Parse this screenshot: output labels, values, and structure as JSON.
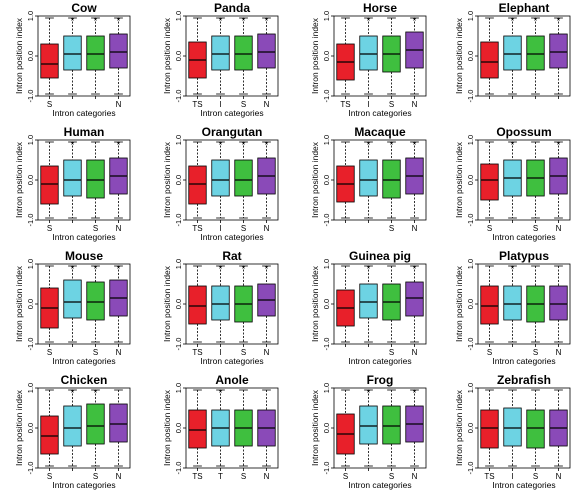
{
  "colors": [
    "#e8202a",
    "#6dd3e3",
    "#3fbf3f",
    "#8a4ab8"
  ],
  "chart_data": [
    {
      "type": "box",
      "title": "Cow",
      "xlabel": "Intron categories",
      "ylabel": "Intron position index",
      "ylim": [
        -1,
        1
      ],
      "yticks": [
        "1.0",
        "0.0",
        "-1.0"
      ],
      "categories": [
        "S",
        "",
        "",
        "N"
      ],
      "boxes": [
        {
          "whislo": -0.95,
          "q1": -0.55,
          "med": -0.2,
          "q3": 0.3,
          "whishi": 0.95
        },
        {
          "whislo": -0.95,
          "q1": -0.35,
          "med": 0.05,
          "q3": 0.5,
          "whishi": 0.95
        },
        {
          "whislo": -0.95,
          "q1": -0.35,
          "med": 0.05,
          "q3": 0.5,
          "whishi": 0.95
        },
        {
          "whislo": -0.95,
          "q1": -0.3,
          "med": 0.1,
          "q3": 0.55,
          "whishi": 0.95
        }
      ],
      "stars": [
        "",
        "*",
        "*",
        "*"
      ]
    },
    {
      "type": "box",
      "title": "Panda",
      "xlabel": "Intron categories",
      "ylabel": "Intron position index",
      "ylim": [
        -1,
        1
      ],
      "yticks": [
        "1.0",
        "0.0",
        "-1.0"
      ],
      "categories": [
        "TS",
        "I",
        "S",
        "N"
      ],
      "boxes": [
        {
          "whislo": -0.95,
          "q1": -0.55,
          "med": -0.1,
          "q3": 0.35,
          "whishi": 0.95
        },
        {
          "whislo": -0.95,
          "q1": -0.35,
          "med": 0.05,
          "q3": 0.5,
          "whishi": 0.95
        },
        {
          "whislo": -0.95,
          "q1": -0.35,
          "med": 0.05,
          "q3": 0.5,
          "whishi": 0.95
        },
        {
          "whislo": -0.95,
          "q1": -0.3,
          "med": 0.1,
          "q3": 0.55,
          "whishi": 0.95
        }
      ],
      "stars": [
        "",
        "*",
        "*",
        "*"
      ]
    },
    {
      "type": "box",
      "title": "Horse",
      "xlabel": "Intron categories",
      "ylabel": "Intron position index",
      "ylim": [
        -1,
        1
      ],
      "yticks": [
        "1.0",
        "0.0",
        "-1.0"
      ],
      "categories": [
        "TS",
        "I",
        "S",
        "N"
      ],
      "boxes": [
        {
          "whislo": -0.95,
          "q1": -0.6,
          "med": -0.15,
          "q3": 0.3,
          "whishi": 0.95
        },
        {
          "whislo": -0.95,
          "q1": -0.35,
          "med": 0.05,
          "q3": 0.5,
          "whishi": 0.95
        },
        {
          "whislo": -0.95,
          "q1": -0.4,
          "med": 0.05,
          "q3": 0.5,
          "whishi": 0.95
        },
        {
          "whislo": -0.95,
          "q1": -0.3,
          "med": 0.15,
          "q3": 0.6,
          "whishi": 0.95
        }
      ],
      "stars": [
        "",
        "*",
        "",
        "*"
      ]
    },
    {
      "type": "box",
      "title": "Elephant",
      "xlabel": "",
      "ylabel": "Intron position index",
      "ylim": [
        -1,
        1
      ],
      "yticks": [
        "1.0",
        "0.0",
        "-1.0"
      ],
      "categories": [
        "",
        "",
        "",
        ""
      ],
      "boxes": [
        {
          "whislo": -0.95,
          "q1": -0.55,
          "med": -0.15,
          "q3": 0.35,
          "whishi": 0.95
        },
        {
          "whislo": -0.95,
          "q1": -0.35,
          "med": 0.05,
          "q3": 0.5,
          "whishi": 0.95
        },
        {
          "whislo": -0.95,
          "q1": -0.35,
          "med": 0.05,
          "q3": 0.5,
          "whishi": 0.95
        },
        {
          "whislo": -0.95,
          "q1": -0.3,
          "med": 0.1,
          "q3": 0.55,
          "whishi": 0.95
        }
      ],
      "stars": [
        "",
        "*",
        "*",
        "*"
      ]
    },
    {
      "type": "box",
      "title": "Human",
      "xlabel": "Intron categories",
      "ylabel": "Intron position index",
      "ylim": [
        -1,
        1
      ],
      "yticks": [
        "1.0",
        "0.0",
        "-1.0"
      ],
      "categories": [
        "S",
        "",
        "S",
        "N"
      ],
      "boxes": [
        {
          "whislo": -0.95,
          "q1": -0.6,
          "med": -0.1,
          "q3": 0.35,
          "whishi": 0.95
        },
        {
          "whislo": -0.95,
          "q1": -0.4,
          "med": 0.0,
          "q3": 0.5,
          "whishi": 0.95
        },
        {
          "whislo": -0.95,
          "q1": -0.45,
          "med": 0.0,
          "q3": 0.5,
          "whishi": 0.95
        },
        {
          "whislo": -0.95,
          "q1": -0.35,
          "med": 0.1,
          "q3": 0.55,
          "whishi": 0.95
        }
      ],
      "stars": [
        "",
        "*",
        "",
        "*"
      ]
    },
    {
      "type": "box",
      "title": "Orangutan",
      "xlabel": "Intron categories",
      "ylabel": "Intron position index",
      "ylim": [
        -1,
        1
      ],
      "yticks": [
        "1.0",
        "0.0",
        "-1.0"
      ],
      "categories": [
        "TS",
        "I",
        "S",
        "N"
      ],
      "boxes": [
        {
          "whislo": -0.95,
          "q1": -0.6,
          "med": -0.1,
          "q3": 0.35,
          "whishi": 0.95
        },
        {
          "whislo": -0.95,
          "q1": -0.4,
          "med": 0.0,
          "q3": 0.5,
          "whishi": 0.95
        },
        {
          "whislo": -0.95,
          "q1": -0.4,
          "med": 0.0,
          "q3": 0.5,
          "whishi": 0.95
        },
        {
          "whislo": -0.95,
          "q1": -0.35,
          "med": 0.1,
          "q3": 0.55,
          "whishi": 0.95
        }
      ],
      "stars": [
        "",
        "*",
        "*",
        "*"
      ]
    },
    {
      "type": "box",
      "title": "Macaque",
      "xlabel": "",
      "ylabel": "Intron position index",
      "ylim": [
        -1,
        1
      ],
      "yticks": [
        "1.0",
        "0.0",
        "-1.0"
      ],
      "categories": [
        "",
        "",
        "S",
        "N"
      ],
      "boxes": [
        {
          "whislo": -0.95,
          "q1": -0.55,
          "med": -0.1,
          "q3": 0.35,
          "whishi": 0.95
        },
        {
          "whislo": -0.95,
          "q1": -0.4,
          "med": 0.0,
          "q3": 0.5,
          "whishi": 0.95
        },
        {
          "whislo": -0.95,
          "q1": -0.45,
          "med": 0.0,
          "q3": 0.5,
          "whishi": 0.95
        },
        {
          "whislo": -0.95,
          "q1": -0.35,
          "med": 0.1,
          "q3": 0.55,
          "whishi": 0.95
        }
      ],
      "stars": [
        "",
        "*",
        "*",
        "*"
      ]
    },
    {
      "type": "box",
      "title": "Opossum",
      "xlabel": "Intron categories",
      "ylabel": "Intron position index",
      "ylim": [
        -1,
        1
      ],
      "yticks": [
        "1.0",
        "0.0",
        "-1.0"
      ],
      "categories": [
        "S",
        "",
        "S",
        "N"
      ],
      "boxes": [
        {
          "whislo": -0.95,
          "q1": -0.5,
          "med": 0.0,
          "q3": 0.4,
          "whishi": 0.95
        },
        {
          "whislo": -0.95,
          "q1": -0.4,
          "med": 0.05,
          "q3": 0.5,
          "whishi": 0.95
        },
        {
          "whislo": -0.95,
          "q1": -0.4,
          "med": 0.05,
          "q3": 0.5,
          "whishi": 0.95
        },
        {
          "whislo": -0.95,
          "q1": -0.35,
          "med": 0.1,
          "q3": 0.55,
          "whishi": 0.95
        }
      ],
      "stars": [
        "",
        "*",
        "",
        "*"
      ]
    },
    {
      "type": "box",
      "title": "Mouse",
      "xlabel": "Intron categories",
      "ylabel": "Intron position index",
      "ylim": [
        -1,
        1
      ],
      "yticks": [
        "1.0",
        "0.0",
        "-1.0"
      ],
      "categories": [
        "S",
        "",
        "S",
        "N"
      ],
      "boxes": [
        {
          "whislo": -0.95,
          "q1": -0.6,
          "med": -0.1,
          "q3": 0.4,
          "whishi": 0.95
        },
        {
          "whislo": -0.95,
          "q1": -0.35,
          "med": 0.05,
          "q3": 0.6,
          "whishi": 0.95
        },
        {
          "whislo": -0.95,
          "q1": -0.4,
          "med": 0.05,
          "q3": 0.55,
          "whishi": 0.95
        },
        {
          "whislo": -0.95,
          "q1": -0.3,
          "med": 0.15,
          "q3": 0.6,
          "whishi": 0.95
        }
      ],
      "stars": [
        "",
        "*",
        "*",
        "*"
      ]
    },
    {
      "type": "box",
      "title": "Rat",
      "xlabel": "Intron categories",
      "ylabel": "Intron position index",
      "ylim": [
        -1,
        1
      ],
      "yticks": [
        "1.0",
        "0.0",
        "-1.0"
      ],
      "categories": [
        "TS",
        "I",
        "S",
        "N"
      ],
      "boxes": [
        {
          "whislo": -0.95,
          "q1": -0.5,
          "med": -0.05,
          "q3": 0.45,
          "whishi": 0.95
        },
        {
          "whislo": -0.95,
          "q1": -0.4,
          "med": 0.0,
          "q3": 0.45,
          "whishi": 0.95
        },
        {
          "whislo": -0.95,
          "q1": -0.45,
          "med": 0.0,
          "q3": 0.45,
          "whishi": 0.95
        },
        {
          "whislo": -0.95,
          "q1": -0.3,
          "med": 0.1,
          "q3": 0.5,
          "whishi": 0.95
        }
      ],
      "stars": [
        "",
        "*",
        "*",
        "*"
      ]
    },
    {
      "type": "box",
      "title": "Guinea pig",
      "xlabel": "Intron categories",
      "ylabel": "Intron position index",
      "ylim": [
        -1,
        1
      ],
      "yticks": [
        "1.0",
        "0.0",
        "-1.0"
      ],
      "categories": [
        "",
        "",
        "S",
        "N"
      ],
      "boxes": [
        {
          "whislo": -0.95,
          "q1": -0.55,
          "med": -0.1,
          "q3": 0.35,
          "whishi": 0.95
        },
        {
          "whislo": -0.95,
          "q1": -0.35,
          "med": 0.05,
          "q3": 0.5,
          "whishi": 0.95
        },
        {
          "whislo": -0.95,
          "q1": -0.4,
          "med": 0.05,
          "q3": 0.5,
          "whishi": 0.95
        },
        {
          "whislo": -0.95,
          "q1": -0.3,
          "med": 0.15,
          "q3": 0.55,
          "whishi": 0.95
        }
      ],
      "stars": [
        "",
        "*",
        "",
        "*"
      ]
    },
    {
      "type": "box",
      "title": "Platypus",
      "xlabel": "Intron categories",
      "ylabel": "Intron position index",
      "ylim": [
        -1,
        1
      ],
      "yticks": [
        "1.0",
        "0.0",
        "-1.0"
      ],
      "categories": [
        "S",
        "",
        "S",
        "N"
      ],
      "boxes": [
        {
          "whislo": -0.95,
          "q1": -0.5,
          "med": -0.05,
          "q3": 0.45,
          "whishi": 0.95
        },
        {
          "whislo": -0.95,
          "q1": -0.4,
          "med": 0.0,
          "q3": 0.45,
          "whishi": 0.95
        },
        {
          "whislo": -0.95,
          "q1": -0.45,
          "med": 0.0,
          "q3": 0.45,
          "whishi": 0.95
        },
        {
          "whislo": -0.95,
          "q1": -0.4,
          "med": 0.0,
          "q3": 0.45,
          "whishi": 0.95
        }
      ],
      "stars": [
        "",
        "*",
        "",
        ""
      ]
    },
    {
      "type": "box",
      "title": "Chicken",
      "xlabel": "Intron categories",
      "ylabel": "Intron position index",
      "ylim": [
        -1,
        1
      ],
      "yticks": [
        "1.0",
        "0.0",
        "-1.0"
      ],
      "categories": [
        "S",
        "",
        "S",
        "N"
      ],
      "boxes": [
        {
          "whislo": -0.95,
          "q1": -0.65,
          "med": -0.2,
          "q3": 0.3,
          "whishi": 0.95
        },
        {
          "whislo": -0.95,
          "q1": -0.45,
          "med": 0.0,
          "q3": 0.55,
          "whishi": 0.95
        },
        {
          "whislo": -0.95,
          "q1": -0.4,
          "med": 0.05,
          "q3": 0.6,
          "whishi": 0.95
        },
        {
          "whislo": -0.95,
          "q1": -0.35,
          "med": 0.1,
          "q3": 0.6,
          "whishi": 0.95
        }
      ],
      "stars": [
        "",
        "*",
        "*",
        ""
      ]
    },
    {
      "type": "box",
      "title": "Anole",
      "xlabel": "",
      "ylabel": "Intron position index",
      "ylim": [
        -1,
        1
      ],
      "yticks": [
        "1.0",
        "0.0",
        "-1.0"
      ],
      "categories": [
        "TS",
        "T",
        "S",
        "N"
      ],
      "boxes": [
        {
          "whislo": -0.95,
          "q1": -0.5,
          "med": -0.05,
          "q3": 0.45,
          "whishi": 0.95
        },
        {
          "whislo": -0.95,
          "q1": -0.45,
          "med": 0.0,
          "q3": 0.45,
          "whishi": 0.95
        },
        {
          "whislo": -0.95,
          "q1": -0.45,
          "med": 0.0,
          "q3": 0.45,
          "whishi": 0.95
        },
        {
          "whislo": -0.95,
          "q1": -0.45,
          "med": 0.0,
          "q3": 0.45,
          "whishi": 0.95
        }
      ],
      "stars": [
        "",
        "*",
        "",
        ""
      ]
    },
    {
      "type": "box",
      "title": "Frog",
      "xlabel": "Intron categories",
      "ylabel": "Intron position index",
      "ylim": [
        -1,
        1
      ],
      "yticks": [
        "1.0",
        "0.0",
        "-1.0"
      ],
      "categories": [
        "S",
        "",
        "S",
        "N"
      ],
      "boxes": [
        {
          "whislo": -0.95,
          "q1": -0.65,
          "med": -0.15,
          "q3": 0.35,
          "whishi": 0.95
        },
        {
          "whislo": -0.95,
          "q1": -0.4,
          "med": 0.05,
          "q3": 0.55,
          "whishi": 0.95
        },
        {
          "whislo": -0.95,
          "q1": -0.4,
          "med": 0.05,
          "q3": 0.55,
          "whishi": 0.95
        },
        {
          "whislo": -0.95,
          "q1": -0.35,
          "med": 0.1,
          "q3": 0.55,
          "whishi": 0.95
        }
      ],
      "stars": [
        "",
        "*",
        "",
        "*"
      ]
    },
    {
      "type": "box",
      "title": "Zebrafish",
      "xlabel": "Intron categories",
      "ylabel": "Intron position index",
      "ylim": [
        -1,
        1
      ],
      "yticks": [
        "1.0",
        "0.0",
        "-1.0"
      ],
      "categories": [
        "TS",
        "I",
        "S",
        "N"
      ],
      "boxes": [
        {
          "whislo": -0.95,
          "q1": -0.5,
          "med": 0.0,
          "q3": 0.45,
          "whishi": 0.95
        },
        {
          "whislo": -0.95,
          "q1": -0.45,
          "med": 0.0,
          "q3": 0.5,
          "whishi": 0.95
        },
        {
          "whislo": -0.95,
          "q1": -0.5,
          "med": 0.0,
          "q3": 0.45,
          "whishi": 0.95
        },
        {
          "whislo": -0.95,
          "q1": -0.45,
          "med": 0.0,
          "q3": 0.45,
          "whishi": 0.95
        }
      ],
      "stars": [
        "",
        "",
        "",
        ""
      ]
    }
  ]
}
